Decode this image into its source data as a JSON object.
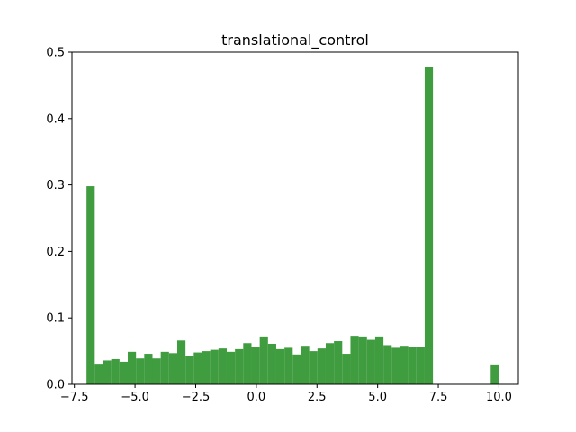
{
  "chart_data": {
    "type": "bar",
    "title": "translational_control",
    "xlabel": "",
    "ylabel": "",
    "xlim": [
      -7.6,
      10.8
    ],
    "ylim": [
      0,
      0.5
    ],
    "xticks": [
      -7.5,
      -5.0,
      -2.5,
      0.0,
      2.5,
      5.0,
      7.5,
      10.0
    ],
    "xtick_labels": [
      "−7.5",
      "−5.0",
      "−2.5",
      "0.0",
      "2.5",
      "5.0",
      "7.5",
      "10.0"
    ],
    "yticks": [
      0.0,
      0.1,
      0.2,
      0.3,
      0.4,
      0.5
    ],
    "ytick_labels": [
      "0.0",
      "0.1",
      "0.2",
      "0.3",
      "0.4",
      "0.5"
    ],
    "grid": false,
    "legend": "none",
    "bar_color": "#3f9c3f",
    "bins": {
      "start": -7.0,
      "width": 0.34,
      "values": [
        0.298,
        0.031,
        0.036,
        0.038,
        0.034,
        0.049,
        0.039,
        0.046,
        0.039,
        0.049,
        0.047,
        0.066,
        0.042,
        0.048,
        0.05,
        0.052,
        0.054,
        0.049,
        0.053,
        0.062,
        0.056,
        0.072,
        0.061,
        0.053,
        0.055,
        0.045,
        0.058,
        0.05,
        0.054,
        0.062,
        0.065,
        0.046,
        0.073,
        0.072,
        0.067,
        0.072,
        0.059,
        0.055,
        0.058,
        0.056,
        0.056,
        0.477,
        0,
        0,
        0,
        0,
        0,
        0,
        0,
        0.03
      ]
    }
  }
}
